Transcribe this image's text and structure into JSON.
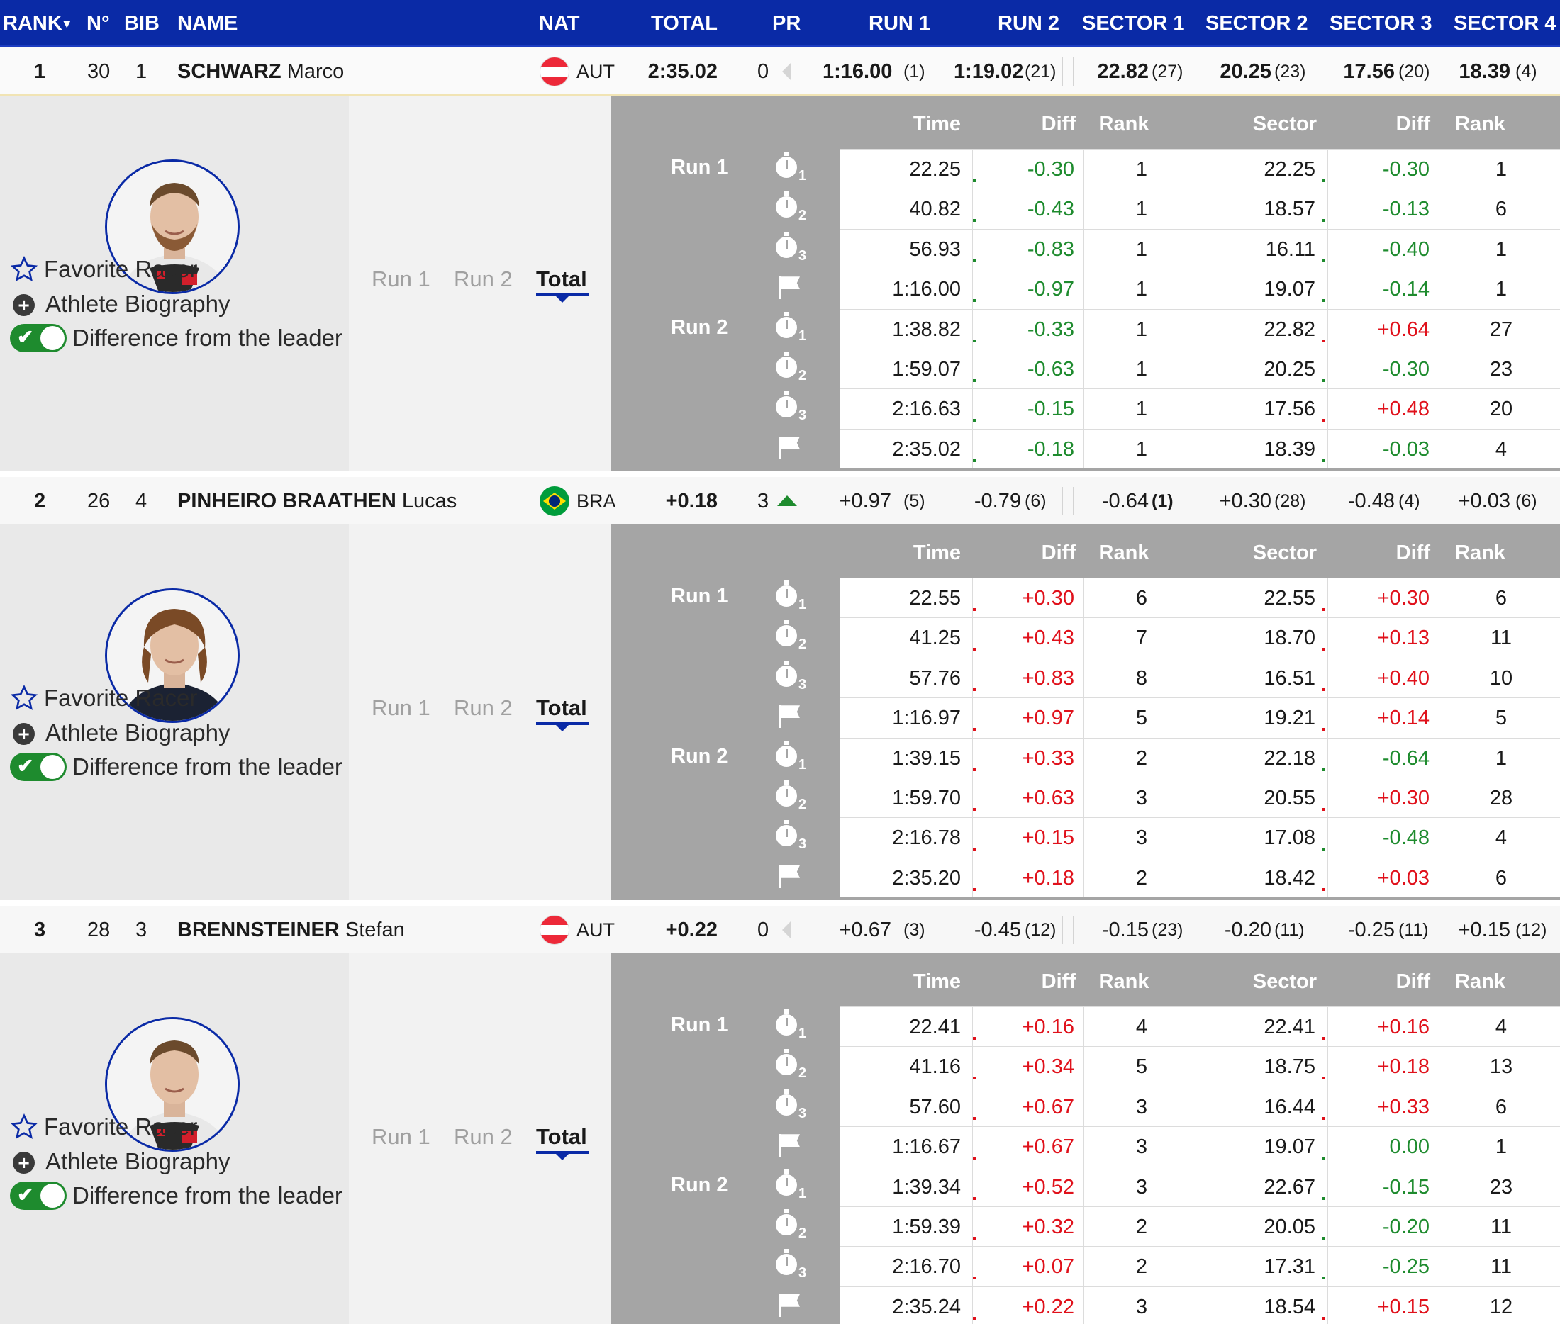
{
  "header": {
    "rank": "RANK",
    "rank_arrow": "▾",
    "no": "N°",
    "bib": "BIB",
    "name": "NAME",
    "nat": "NAT",
    "total": "TOTAL",
    "pr": "PR",
    "run1": "RUN 1",
    "run2": "RUN 2",
    "sector1": "SECTOR 1",
    "sector2": "SECTOR 2",
    "sector3": "SECTOR 3",
    "sector4": "SECTOR 4"
  },
  "detail_labels": {
    "time": "Time",
    "diff": "Diff",
    "rank": "Rank",
    "sector": "Sector",
    "run1": "Run 1",
    "run2": "Run 2",
    "total": "Total",
    "favorite": "Favorite Racer",
    "bio": "Athlete Biography",
    "diff_leader": "Difference from the leader"
  },
  "racers": [
    {
      "rank": "1",
      "no": "30",
      "bib": "1",
      "surname": "SCHWARZ",
      "firstname": "Marco",
      "nat": "AUT",
      "flag": "aut",
      "total": "2:35.02",
      "pr": "0",
      "pr_trend": "none",
      "run1": "1:16.00",
      "run1_rank": "(1)",
      "run2": "1:19.02",
      "run2_rank": "(21)",
      "sector1": "22.82",
      "sector1_rank": "(27)",
      "sector2": "20.25",
      "sector2_rank": "(23)",
      "sector3": "17.56",
      "sector3_rank": "(20)",
      "sector4": "18.39",
      "sector4_rank": "(4)",
      "values_bold": true,
      "splits": [
        {
          "time": "22.25",
          "diff": "-0.30",
          "rank": "1",
          "sector": "22.25",
          "sdiff": "-0.30",
          "srank": "1"
        },
        {
          "time": "40.82",
          "diff": "-0.43",
          "rank": "1",
          "sector": "18.57",
          "sdiff": "-0.13",
          "srank": "6"
        },
        {
          "time": "56.93",
          "diff": "-0.83",
          "rank": "1",
          "sector": "16.11",
          "sdiff": "-0.40",
          "srank": "1"
        },
        {
          "time": "1:16.00",
          "diff": "-0.97",
          "rank": "1",
          "sector": "19.07",
          "sdiff": "-0.14",
          "srank": "1"
        },
        {
          "time": "1:38.82",
          "diff": "-0.33",
          "rank": "1",
          "sector": "22.82",
          "sdiff": "+0.64",
          "srank": "27"
        },
        {
          "time": "1:59.07",
          "diff": "-0.63",
          "rank": "1",
          "sector": "20.25",
          "sdiff": "-0.30",
          "srank": "23"
        },
        {
          "time": "2:16.63",
          "diff": "-0.15",
          "rank": "1",
          "sector": "17.56",
          "sdiff": "+0.48",
          "srank": "20"
        },
        {
          "time": "2:35.02",
          "diff": "-0.18",
          "rank": "1",
          "sector": "18.39",
          "sdiff": "-0.03",
          "srank": "4"
        }
      ]
    },
    {
      "rank": "2",
      "no": "26",
      "bib": "4",
      "surname": "PINHEIRO BRAATHEN",
      "firstname": "Lucas",
      "nat": "BRA",
      "flag": "bra",
      "total": "+0.18",
      "pr": "3",
      "pr_trend": "up",
      "run1": "+0.97",
      "run1_rank": "(5)",
      "run2": "-0.79",
      "run2_rank": "(6)",
      "sector1": "-0.64",
      "sector1_rank": "(1)",
      "sector2": "+0.30",
      "sector2_rank": "(28)",
      "sector3": "-0.48",
      "sector3_rank": "(4)",
      "sector4": "+0.03",
      "sector4_rank": "(6)",
      "values_bold": false,
      "splits": [
        {
          "time": "22.55",
          "diff": "+0.30",
          "rank": "6",
          "sector": "22.55",
          "sdiff": "+0.30",
          "srank": "6"
        },
        {
          "time": "41.25",
          "diff": "+0.43",
          "rank": "7",
          "sector": "18.70",
          "sdiff": "+0.13",
          "srank": "11"
        },
        {
          "time": "57.76",
          "diff": "+0.83",
          "rank": "8",
          "sector": "16.51",
          "sdiff": "+0.40",
          "srank": "10"
        },
        {
          "time": "1:16.97",
          "diff": "+0.97",
          "rank": "5",
          "sector": "19.21",
          "sdiff": "+0.14",
          "srank": "5"
        },
        {
          "time": "1:39.15",
          "diff": "+0.33",
          "rank": "2",
          "sector": "22.18",
          "sdiff": "-0.64",
          "srank": "1"
        },
        {
          "time": "1:59.70",
          "diff": "+0.63",
          "rank": "3",
          "sector": "20.55",
          "sdiff": "+0.30",
          "srank": "28"
        },
        {
          "time": "2:16.78",
          "diff": "+0.15",
          "rank": "3",
          "sector": "17.08",
          "sdiff": "-0.48",
          "srank": "4"
        },
        {
          "time": "2:35.20",
          "diff": "+0.18",
          "rank": "2",
          "sector": "18.42",
          "sdiff": "+0.03",
          "srank": "6"
        }
      ]
    },
    {
      "rank": "3",
      "no": "28",
      "bib": "3",
      "surname": "BRENNSTEINER",
      "firstname": "Stefan",
      "nat": "AUT",
      "flag": "aut",
      "total": "+0.22",
      "pr": "0",
      "pr_trend": "none",
      "run1": "+0.67",
      "run1_rank": "(3)",
      "run2": "-0.45",
      "run2_rank": "(12)",
      "sector1": "-0.15",
      "sector1_rank": "(23)",
      "sector2": "-0.20",
      "sector2_rank": "(11)",
      "sector3": "-0.25",
      "sector3_rank": "(11)",
      "sector4": "+0.15",
      "sector4_rank": "(12)",
      "values_bold": false,
      "splits": [
        {
          "time": "22.41",
          "diff": "+0.16",
          "rank": "4",
          "sector": "22.41",
          "sdiff": "+0.16",
          "srank": "4"
        },
        {
          "time": "41.16",
          "diff": "+0.34",
          "rank": "5",
          "sector": "18.75",
          "sdiff": "+0.18",
          "srank": "13"
        },
        {
          "time": "57.60",
          "diff": "+0.67",
          "rank": "3",
          "sector": "16.44",
          "sdiff": "+0.33",
          "srank": "6"
        },
        {
          "time": "1:16.67",
          "diff": "+0.67",
          "rank": "3",
          "sector": "19.07",
          "sdiff": "0.00",
          "srank": "1"
        },
        {
          "time": "1:39.34",
          "diff": "+0.52",
          "rank": "3",
          "sector": "22.67",
          "sdiff": "-0.15",
          "srank": "23"
        },
        {
          "time": "1:59.39",
          "diff": "+0.32",
          "rank": "2",
          "sector": "20.05",
          "sdiff": "-0.20",
          "srank": "11"
        },
        {
          "time": "2:16.70",
          "diff": "+0.07",
          "rank": "2",
          "sector": "17.31",
          "sdiff": "-0.25",
          "srank": "11"
        },
        {
          "time": "2:35.24",
          "diff": "+0.22",
          "rank": "3",
          "sector": "18.54",
          "sdiff": "+0.15",
          "srank": "12"
        }
      ]
    }
  ],
  "split_icons": [
    "stopwatch-1",
    "stopwatch-2",
    "stopwatch-3",
    "finish-flag",
    "stopwatch-1",
    "stopwatch-2",
    "stopwatch-3",
    "finish-flag"
  ],
  "split_subscripts": [
    "1",
    "2",
    "3",
    "",
    "1",
    "2",
    "3",
    ""
  ],
  "colors": {
    "header": "#0a2aa6",
    "faster": "#1e8b2e",
    "slower": "#e0111b",
    "toggle_on": "#1e8b2e"
  }
}
